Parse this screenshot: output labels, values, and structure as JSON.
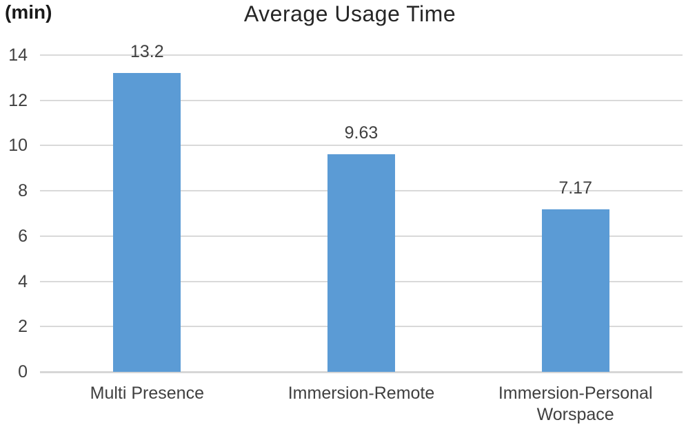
{
  "chart_data": {
    "type": "bar",
    "title": "Average Usage Time",
    "unit_label": "(min)",
    "categories": [
      "Multi Presence",
      "Immersion-Remote",
      "Immersion-Personal Worspace"
    ],
    "values": [
      13.2,
      9.63,
      7.17
    ],
    "value_labels": [
      "13.2",
      "9.63",
      "7.17"
    ],
    "y_ticks": [
      0,
      2,
      4,
      6,
      8,
      10,
      12,
      14
    ],
    "ylim": [
      0,
      14
    ],
    "grid": true,
    "legend": "none",
    "colors": {
      "bar": "#5b9bd5",
      "gridline": "#d9d9d9",
      "axis_line": "#d6d6d6",
      "tick_text": "#404040",
      "title_text": "#262626"
    }
  }
}
